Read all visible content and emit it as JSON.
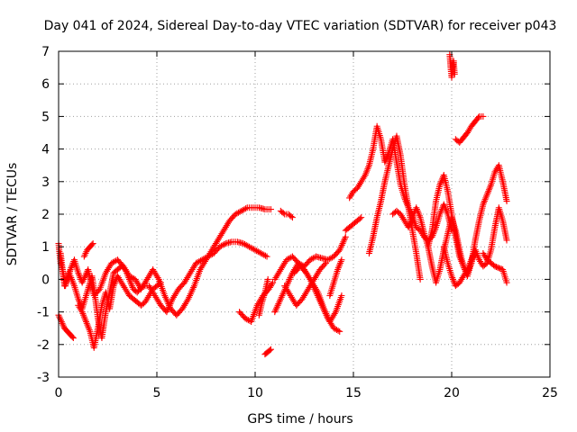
{
  "chart_data": {
    "type": "scatter",
    "title": "Day 041 of 2024, Sidereal Day-to-day VTEC variation (SDTVAR) for receiver p043",
    "xlabel": "GPS time / hours",
    "ylabel": "SDTVAR / TECUs",
    "xlim": [
      0,
      25
    ],
    "ylim": [
      -3,
      7
    ],
    "x_ticks": [
      0,
      5,
      10,
      15,
      20,
      25
    ],
    "y_ticks": [
      -3,
      -2,
      -1,
      0,
      1,
      2,
      3,
      4,
      5,
      6,
      7
    ],
    "x_tick_labels": [
      "0",
      "5",
      "10",
      "15",
      "20",
      "25"
    ],
    "y_tick_labels": [
      "-3",
      "-2",
      "-1",
      "0",
      "1",
      "2",
      "3",
      "4",
      "5",
      "6",
      "7"
    ],
    "grid": true,
    "marker": "+",
    "color": "#ff0000",
    "series": [
      {
        "name": "t1",
        "x": [
          0.0,
          0.1,
          0.2,
          0.3,
          0.45,
          0.6,
          0.8,
          1.0,
          1.2,
          1.5,
          1.8,
          2.1,
          2.4,
          2.7,
          3.0,
          3.3,
          3.6,
          3.9,
          4.2,
          4.5,
          4.8,
          5.1,
          5.4,
          5.7,
          6.0,
          6.3,
          6.6,
          6.9,
          7.2,
          7.5,
          7.8,
          8.1,
          8.4,
          8.7,
          9.0,
          9.3,
          9.6,
          9.9,
          10.2,
          10.5,
          10.8
        ],
        "y": [
          1.1,
          0.5,
          0.3,
          -0.2,
          0.0,
          0.3,
          0.6,
          0.2,
          -0.1,
          0.3,
          -0.5,
          -0.3,
          0.2,
          0.5,
          0.6,
          0.4,
          0.1,
          0.0,
          -0.3,
          0.0,
          0.3,
          0.0,
          -0.5,
          -0.9,
          -1.1,
          -0.9,
          -0.6,
          -0.2,
          0.3,
          0.6,
          0.9,
          1.2,
          1.5,
          1.8,
          2.0,
          2.1,
          2.2,
          2.2,
          2.2,
          2.15,
          2.15
        ]
      },
      {
        "name": "t2",
        "x": [
          0.1,
          0.2,
          0.35,
          0.5,
          0.6,
          0.8,
          1.0,
          1.2,
          1.4,
          1.55,
          1.7,
          1.85,
          2.0,
          2.2,
          2.4,
          2.6,
          2.8,
          3.0,
          3.2,
          3.4,
          3.6,
          3.8,
          4.0,
          4.3,
          4.6,
          4.9,
          5.2,
          5.5,
          5.8,
          6.1,
          6.4,
          6.7,
          7.0,
          7.3,
          7.6,
          7.9,
          8.2,
          8.5,
          8.8,
          9.1,
          9.4,
          9.7,
          10.0,
          10.3,
          10.6
        ],
        "y": [
          0.8,
          0.3,
          -0.2,
          0.2,
          0.1,
          -0.2,
          -0.6,
          -0.9,
          -0.5,
          -0.2,
          0.1,
          -0.5,
          -1.2,
          -1.8,
          -1.0,
          -0.4,
          0.2,
          0.3,
          0.4,
          0.3,
          0.0,
          -0.3,
          -0.4,
          -0.2,
          -0.2,
          -0.5,
          -0.8,
          -1.0,
          -0.6,
          -0.3,
          -0.1,
          0.2,
          0.5,
          0.6,
          0.7,
          0.8,
          1.0,
          1.1,
          1.15,
          1.15,
          1.1,
          1.0,
          0.9,
          0.8,
          0.7
        ]
      },
      {
        "name": "t3",
        "x": [
          0.0,
          0.15,
          0.3,
          0.45,
          0.6,
          0.75
        ],
        "y": [
          -1.1,
          -1.3,
          -1.5,
          -1.6,
          -1.7,
          -1.8
        ]
      },
      {
        "name": "t4",
        "x": [
          1.0,
          1.2,
          1.4,
          1.6,
          1.8,
          2.0,
          2.2,
          2.4,
          2.6,
          2.8,
          3.0,
          3.2,
          3.4,
          3.6,
          3.8,
          4.0,
          4.2,
          4.4,
          4.6,
          4.8,
          5.0,
          5.2
        ],
        "y": [
          -0.8,
          -1.0,
          -1.3,
          -1.6,
          -2.1,
          -1.5,
          -0.8,
          -0.4,
          -0.9,
          -0.2,
          0.1,
          -0.1,
          -0.3,
          -0.5,
          -0.6,
          -0.7,
          -0.8,
          -0.7,
          -0.5,
          -0.3,
          -0.2,
          -0.1
        ]
      },
      {
        "name": "t5",
        "x": [
          1.3,
          1.45,
          1.6,
          1.75
        ],
        "y": [
          0.7,
          0.9,
          1.0,
          1.1
        ]
      },
      {
        "name": "t6",
        "x": [
          9.2,
          9.5,
          9.8,
          10.1,
          10.4,
          10.7,
          10.9
        ],
        "y": [
          -1.0,
          -1.2,
          -1.3,
          -0.8,
          -0.5,
          -0.3,
          -0.1
        ]
      },
      {
        "name": "t7",
        "x": [
          10.2,
          10.35,
          10.5,
          10.65
        ],
        "y": [
          -1.1,
          -0.7,
          -0.4,
          0.0
        ]
      },
      {
        "name": "t8",
        "x": [
          10.5,
          10.6,
          10.7,
          10.8
        ],
        "y": [
          -2.3,
          -2.25,
          -2.2,
          -2.15
        ]
      },
      {
        "name": "t9",
        "x": [
          11.3,
          11.5,
          11.7,
          11.9
        ],
        "y": [
          2.1,
          2.0,
          2.0,
          1.9
        ]
      },
      {
        "name": "t10",
        "x": [
          11.0,
          11.3,
          11.6,
          11.9,
          12.2,
          12.5,
          12.8,
          13.1,
          13.4,
          13.7,
          14.0,
          14.3,
          14.6
        ],
        "y": [
          0.0,
          0.3,
          0.6,
          0.7,
          0.5,
          0.4,
          0.6,
          0.7,
          0.65,
          0.6,
          0.7,
          0.9,
          1.3
        ]
      },
      {
        "name": "t11",
        "x": [
          11.0,
          11.3,
          11.6,
          11.9,
          12.2,
          12.5,
          12.8,
          13.1,
          13.4,
          13.7,
          14.0,
          14.3
        ],
        "y": [
          -1.0,
          -0.6,
          -0.2,
          0.2,
          0.5,
          0.3,
          0.0,
          -0.4,
          -0.8,
          -1.2,
          -1.5,
          -1.6
        ]
      },
      {
        "name": "t12",
        "x": [
          12.0,
          12.3,
          12.6,
          12.9,
          13.2,
          13.5,
          13.8,
          14.1,
          14.4
        ],
        "y": [
          0.2,
          0.4,
          0.2,
          -0.1,
          -0.4,
          -0.9,
          -1.3,
          -1.0,
          -0.5
        ]
      },
      {
        "name": "t13",
        "x": [
          11.5,
          11.8,
          12.1,
          12.4,
          12.7,
          13.0,
          13.3,
          13.6
        ],
        "y": [
          -0.2,
          -0.5,
          -0.8,
          -0.6,
          -0.3,
          0.0,
          0.3,
          0.5
        ]
      },
      {
        "name": "t14",
        "x": [
          13.8,
          14.0,
          14.2,
          14.4
        ],
        "y": [
          -0.5,
          -0.1,
          0.3,
          0.6
        ]
      },
      {
        "name": "t15",
        "x": [
          14.8,
          15.0,
          15.2,
          15.4,
          15.6,
          15.8,
          16.0,
          16.2,
          16.4,
          16.6,
          16.8,
          17.0,
          17.2,
          17.4,
          17.6,
          17.8,
          18.0,
          18.2,
          18.4,
          18.6,
          18.8,
          19.0,
          19.2,
          19.4,
          19.6,
          19.8,
          20.0
        ],
        "y": [
          2.5,
          2.7,
          2.8,
          3.0,
          3.2,
          3.5,
          4.0,
          4.7,
          4.3,
          3.6,
          3.9,
          4.3,
          3.6,
          2.9,
          2.5,
          2.2,
          2.0,
          1.6,
          1.5,
          1.3,
          1.2,
          1.3,
          1.6,
          2.0,
          2.3,
          2.0,
          1.5
        ]
      },
      {
        "name": "t16",
        "x": [
          14.6,
          14.8,
          15.0,
          15.2,
          15.4
        ],
        "y": [
          1.5,
          1.6,
          1.7,
          1.8,
          1.9
        ]
      },
      {
        "name": "t17",
        "x": [
          15.8,
          16.0,
          16.2,
          16.4,
          16.6,
          16.8,
          17.0,
          17.2,
          17.4,
          17.6,
          17.8,
          18.0,
          18.2,
          18.4
        ],
        "y": [
          0.8,
          1.3,
          1.9,
          2.4,
          3.0,
          3.5,
          4.0,
          4.4,
          3.8,
          2.9,
          2.2,
          1.5,
          0.8,
          0.0
        ]
      },
      {
        "name": "t18",
        "x": [
          17.0,
          17.2,
          17.4,
          17.6,
          17.8,
          18.0,
          18.2,
          18.4,
          18.6,
          18.8,
          19.0,
          19.2,
          19.4,
          19.6,
          19.8,
          20.0,
          20.2,
          20.4,
          20.6,
          20.8,
          21.0,
          21.2,
          21.4,
          21.6,
          21.8,
          22.0,
          22.2,
          22.4,
          22.6,
          22.8
        ],
        "y": [
          2.0,
          2.1,
          2.0,
          1.8,
          1.6,
          1.9,
          2.2,
          1.9,
          1.4,
          1.0,
          1.5,
          2.4,
          2.9,
          3.2,
          2.7,
          2.0,
          1.3,
          0.7,
          0.4,
          0.2,
          0.5,
          1.2,
          1.8,
          2.3,
          2.6,
          2.9,
          3.3,
          3.5,
          3.0,
          2.4
        ]
      },
      {
        "name": "t19",
        "x": [
          18.8,
          19.0,
          19.2,
          19.4,
          19.6,
          19.8,
          20.0,
          20.2,
          20.4,
          20.6,
          20.8,
          21.0,
          21.2,
          21.4,
          21.6,
          21.8,
          22.0,
          22.2,
          22.4,
          22.6,
          22.8
        ],
        "y": [
          1.0,
          0.4,
          -0.1,
          0.3,
          0.9,
          1.4,
          1.9,
          1.5,
          0.9,
          0.4,
          0.1,
          0.5,
          0.9,
          0.6,
          0.4,
          0.5,
          0.9,
          1.6,
          2.2,
          1.8,
          1.2
        ]
      },
      {
        "name": "t20",
        "x": [
          19.6,
          19.8,
          20.0,
          20.2,
          20.4,
          20.6,
          20.8,
          21.0,
          21.2
        ],
        "y": [
          1.0,
          0.5,
          0.1,
          -0.2,
          -0.1,
          0.1,
          0.3,
          0.6,
          0.9
        ]
      },
      {
        "name": "t21",
        "x": [
          21.6,
          21.8,
          22.0,
          22.2,
          22.4,
          22.6,
          22.8
        ],
        "y": [
          0.8,
          0.6,
          0.5,
          0.4,
          0.35,
          0.3,
          -0.1
        ]
      },
      {
        "name": "t22",
        "x": [
          19.9,
          19.95,
          20.0,
          20.05,
          20.1,
          20.15
        ],
        "y": [
          6.9,
          6.5,
          6.2,
          6.5,
          6.7,
          6.3
        ]
      },
      {
        "name": "t23",
        "x": [
          20.2,
          20.4,
          20.6,
          20.8,
          21.0,
          21.2,
          21.4,
          21.6
        ],
        "y": [
          4.3,
          4.2,
          4.35,
          4.5,
          4.7,
          4.85,
          5.0,
          5.0
        ]
      }
    ]
  }
}
